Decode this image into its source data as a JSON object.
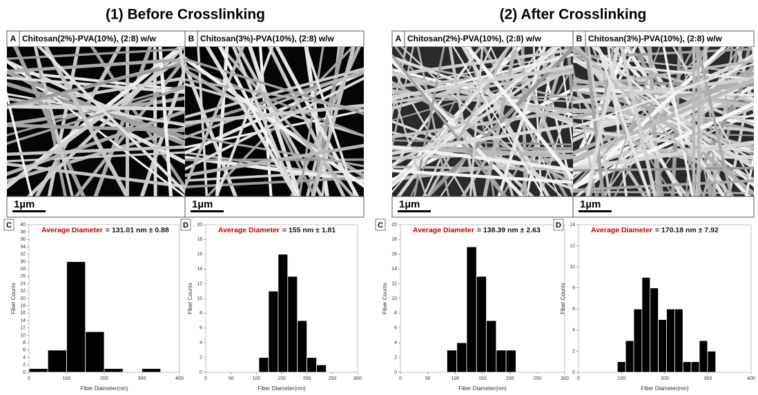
{
  "panels": [
    {
      "heading": "(1) Before Crosslinking",
      "images": [
        {
          "letter": "A",
          "caption": "Chitosan(2%)-PVA(10%), (2:8) w/w",
          "scale": "1µm"
        },
        {
          "letter": "B",
          "caption": "Chitosan(3%)-PVA(10%), (2:8) w/w",
          "scale": "1µm"
        }
      ]
    },
    {
      "heading": "(2) After Crosslinking",
      "images": [
        {
          "letter": "A",
          "caption": "Chitosan(2%)-PVA(10%), (2:8) w/w",
          "scale": "1µm"
        },
        {
          "letter": "B",
          "caption": "Chitosan(3%)-PVA(10%), (2:8) w/w",
          "scale": "1µm"
        }
      ]
    }
  ],
  "chart_data": [
    {
      "type": "histogram",
      "panel_label": "C",
      "annotation_label": "Average Diameter",
      "annotation_value": "= 131.01 nm  ± 0.88",
      "xlabel": "Fiber Diameter(nm)",
      "ylabel": "Fiber Counts",
      "color": "#000000",
      "bins": [
        0,
        50,
        100,
        150,
        200,
        250,
        300,
        350
      ],
      "values": [
        1,
        6,
        30,
        11,
        1,
        0,
        1
      ],
      "xlim": [
        0,
        400
      ],
      "xticks": [
        0,
        100,
        200,
        300,
        400
      ],
      "ylim": [
        0,
        40
      ],
      "yticks": [
        0,
        2,
        4,
        6,
        8,
        10,
        12,
        14,
        16,
        18,
        20,
        22,
        24,
        26,
        28,
        30,
        32,
        34,
        36,
        38,
        40
      ]
    },
    {
      "type": "histogram",
      "panel_label": "D",
      "annotation_label": "Average Diameter",
      "annotation_value": "= 155 nm ± 1.81",
      "xlabel": "Fiber Diameter(nm)",
      "ylabel": "Fiber Counts",
      "color": "#000000",
      "bins": [
        105,
        124,
        143,
        162,
        181,
        200,
        219,
        238
      ],
      "values": [
        2,
        11,
        16,
        13,
        7,
        2,
        1
      ],
      "xlim": [
        0,
        300
      ],
      "xticks": [
        0,
        50,
        100,
        150,
        200,
        250,
        300
      ],
      "ylim": [
        0,
        20
      ],
      "yticks": [
        0,
        2,
        4,
        6,
        8,
        10,
        12,
        14,
        16,
        18,
        20
      ]
    },
    {
      "type": "histogram",
      "panel_label": "C",
      "annotation_label": "Average Diameter",
      "annotation_value": "= 138.39 nm ± 2.63",
      "xlabel": "Fiber Diameter(nm)",
      "ylabel": "Fiber Counts",
      "color": "#000000",
      "bins": [
        85,
        103,
        121,
        139,
        157,
        175,
        193,
        211
      ],
      "values": [
        3,
        4,
        17,
        13,
        7,
        3,
        3
      ],
      "xlim": [
        0,
        300
      ],
      "xticks": [
        0,
        50,
        100,
        150,
        200,
        250,
        300
      ],
      "ylim": [
        0,
        20
      ],
      "yticks": [
        0,
        2,
        4,
        6,
        8,
        10,
        12,
        14,
        16,
        18,
        20
      ]
    },
    {
      "type": "histogram",
      "panel_label": "D",
      "annotation_label": "Average Diameter",
      "annotation_value": "= 170.18 nm ± 7.92",
      "xlabel": "Fiber Diameter(nm)",
      "ylabel": "Fiber Counts",
      "color": "#000000",
      "bins": [
        90,
        109,
        128,
        147,
        166,
        185,
        204,
        223,
        242,
        261,
        280,
        299,
        318
      ],
      "values": [
        1,
        3,
        6,
        9,
        8,
        5,
        6,
        6,
        1,
        1,
        3,
        2
      ],
      "xlim": [
        0,
        400
      ],
      "xticks": [
        0,
        100,
        200,
        300,
        400
      ],
      "ylim": [
        0,
        14
      ],
      "yticks": [
        0,
        2,
        4,
        6,
        8,
        10,
        12,
        14
      ]
    }
  ]
}
